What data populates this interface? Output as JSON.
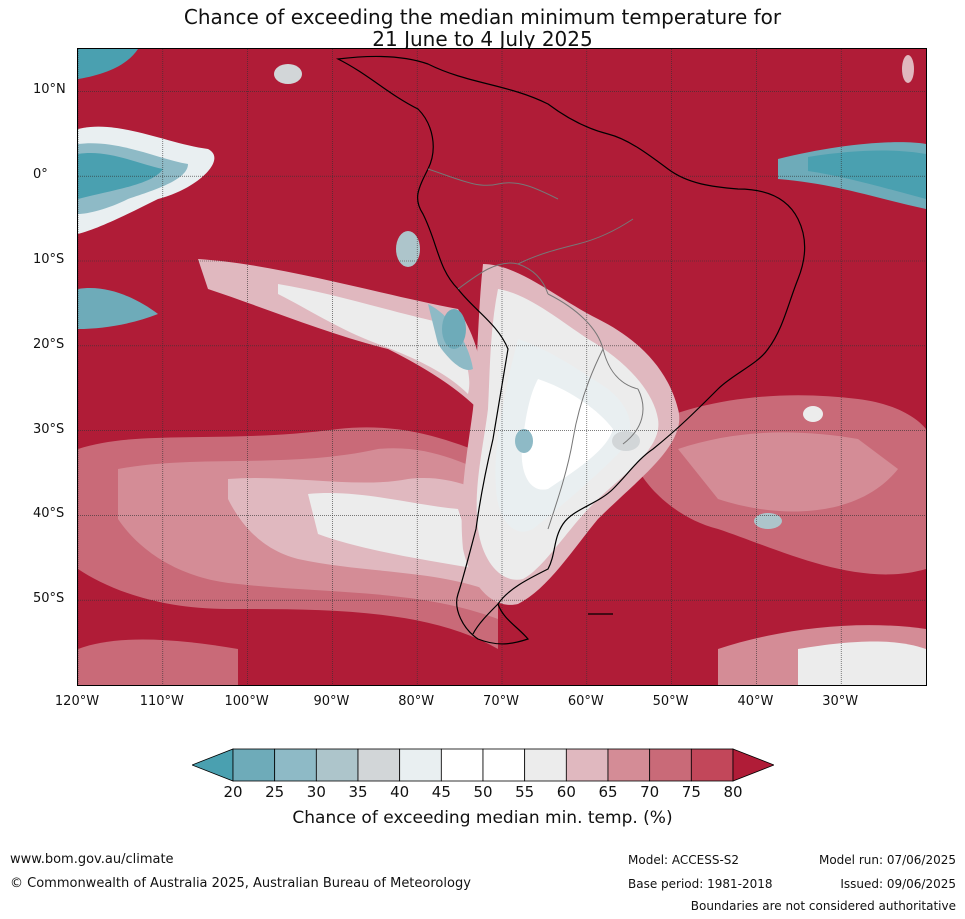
{
  "title": {
    "line1": "Chance of exceeding the median minimum temperature for",
    "line2": "21 June to 4 July 2025"
  },
  "map": {
    "extent": {
      "lon_min": -120,
      "lon_max": -20,
      "lat_min": -60,
      "lat_max": 15
    },
    "lat_ticks": [
      {
        "value": 10,
        "label": "10°N"
      },
      {
        "value": 0,
        "label": "0°"
      },
      {
        "value": -10,
        "label": "10°S"
      },
      {
        "value": -20,
        "label": "20°S"
      },
      {
        "value": -30,
        "label": "30°S"
      },
      {
        "value": -40,
        "label": "40°S"
      },
      {
        "value": -50,
        "label": "50°S"
      }
    ],
    "lon_ticks": [
      {
        "value": -120,
        "label": "120°W"
      },
      {
        "value": -110,
        "label": "110°W"
      },
      {
        "value": -100,
        "label": "100°W"
      },
      {
        "value": -90,
        "label": "90°W"
      },
      {
        "value": -80,
        "label": "80°W"
      },
      {
        "value": -70,
        "label": "70°W"
      },
      {
        "value": -60,
        "label": "60°W"
      },
      {
        "value": -50,
        "label": "50°W"
      },
      {
        "value": -40,
        "label": "40°W"
      },
      {
        "value": -30,
        "label": "30°W"
      }
    ]
  },
  "colorbar": {
    "ticks": [
      "20",
      "25",
      "30",
      "35",
      "40",
      "45",
      "50",
      "55",
      "60",
      "65",
      "70",
      "75",
      "80"
    ],
    "colors": [
      "#4aa0b0",
      "#6eabb9",
      "#8ebac6",
      "#adc5cb",
      "#d2d6d8",
      "#e9eff1",
      "#ffffff",
      "#ffffff",
      "#ececec",
      "#e0b8bf",
      "#d48c96",
      "#c96a78",
      "#c2475a",
      "#b01c37"
    ],
    "label": "Chance of exceeding median min. temp. (%)"
  },
  "footer": {
    "website": "www.bom.gov.au/climate",
    "copyright": "© Commonwealth of Australia 2025, Australian Bureau of Meteorology",
    "model": "Model: ACCESS-S2",
    "base_period": "Base period: 1981-2018",
    "model_run": "Model run: 07/06/2025",
    "issued": "Issued: 09/06/2025",
    "disclaimer": "Boundaries are not considered authoritative"
  }
}
